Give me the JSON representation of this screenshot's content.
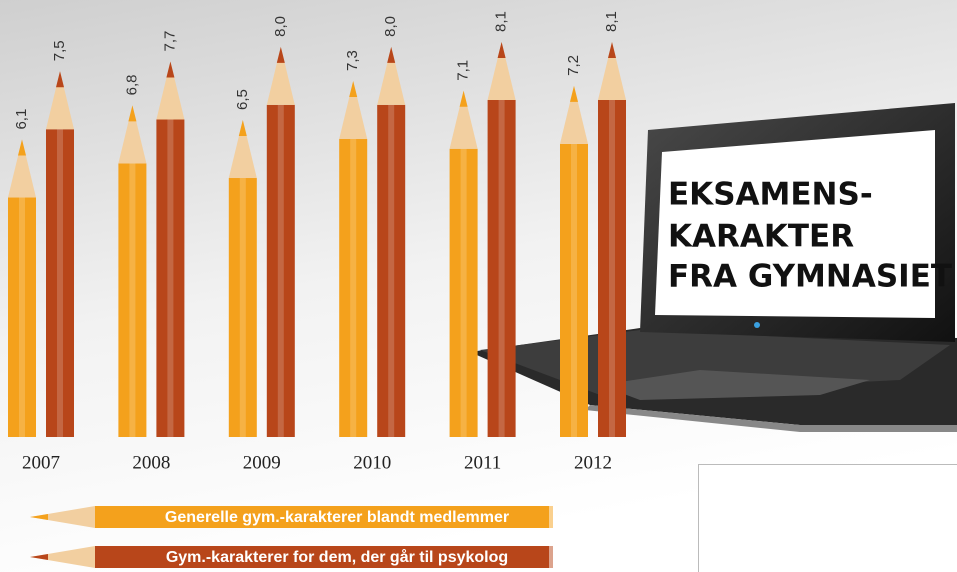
{
  "chart_data": {
    "type": "pencil-bar",
    "title": [
      "EKSAMENS-",
      "KARAKTER",
      "FRA GYMNASIET"
    ],
    "categories": [
      "2007",
      "2008",
      "2009",
      "2010",
      "2011",
      "2012"
    ],
    "series": [
      {
        "name": "Generelle gym.-karakterer blandt medlemmer",
        "color": "#f4a11c",
        "values": [
          6.1,
          6.8,
          6.5,
          7.3,
          7.1,
          7.2
        ],
        "value_labels": [
          "6,1",
          "6,8",
          "6,5",
          "7,3",
          "7,1",
          "7,2"
        ]
      },
      {
        "name": "Gym.-karakterer for dem, der går til psykolog",
        "color": "#b8461a",
        "values": [
          7.5,
          7.7,
          8.0,
          8.0,
          8.1,
          8.1
        ],
        "value_labels": [
          "7,5",
          "7,7",
          "8,0",
          "8,0",
          "8,1",
          "8,1"
        ]
      }
    ]
  }
}
